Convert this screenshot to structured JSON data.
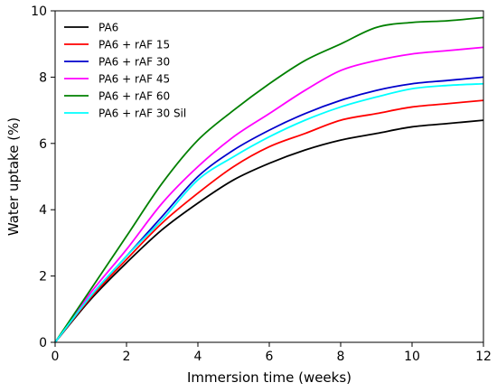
{
  "chart_data": {
    "type": "line",
    "xlabel": "Immersion time (weeks)",
    "ylabel": "Water uptake (%)",
    "xlim": [
      0,
      12
    ],
    "ylim": [
      0,
      10
    ],
    "x_ticks": [
      0,
      2,
      4,
      6,
      8,
      10,
      12
    ],
    "y_ticks": [
      0,
      2,
      4,
      6,
      8,
      10
    ],
    "grid": false,
    "legend_position": "top-left",
    "x": [
      0,
      1,
      2,
      3,
      4,
      5,
      6,
      7,
      8,
      9,
      10,
      11,
      12
    ],
    "series": [
      {
        "name": "PA6",
        "color": "#000000",
        "values": [
          0,
          1.3,
          2.4,
          3.4,
          4.2,
          4.9,
          5.4,
          5.8,
          6.1,
          6.3,
          6.5,
          6.6,
          6.7
        ]
      },
      {
        "name": "PA6 + rAF 15",
        "color": "#ff0000",
        "values": [
          0,
          1.35,
          2.5,
          3.6,
          4.5,
          5.3,
          5.9,
          6.3,
          6.7,
          6.9,
          7.1,
          7.2,
          7.3
        ]
      },
      {
        "name": "PA6 + rAF 30",
        "color": "#0000cc",
        "values": [
          0,
          1.4,
          2.6,
          3.8,
          5.0,
          5.8,
          6.4,
          6.9,
          7.3,
          7.6,
          7.8,
          7.9,
          8.0
        ]
      },
      {
        "name": "PA6 + rAF 45",
        "color": "#ff00ff",
        "values": [
          0,
          1.5,
          2.8,
          4.2,
          5.3,
          6.2,
          6.9,
          7.6,
          8.2,
          8.5,
          8.7,
          8.8,
          8.9
        ]
      },
      {
        "name": "PA6 + rAF 60",
        "color": "#008000",
        "values": [
          0,
          1.6,
          3.2,
          4.8,
          6.1,
          7.0,
          7.8,
          8.5,
          9.0,
          9.5,
          9.65,
          9.7,
          9.8
        ]
      },
      {
        "name": "PA6 + rAF 30 Sil",
        "color": "#00ffff",
        "values": [
          0,
          1.4,
          2.6,
          3.7,
          4.9,
          5.6,
          6.2,
          6.7,
          7.1,
          7.4,
          7.65,
          7.75,
          7.8
        ]
      }
    ]
  }
}
